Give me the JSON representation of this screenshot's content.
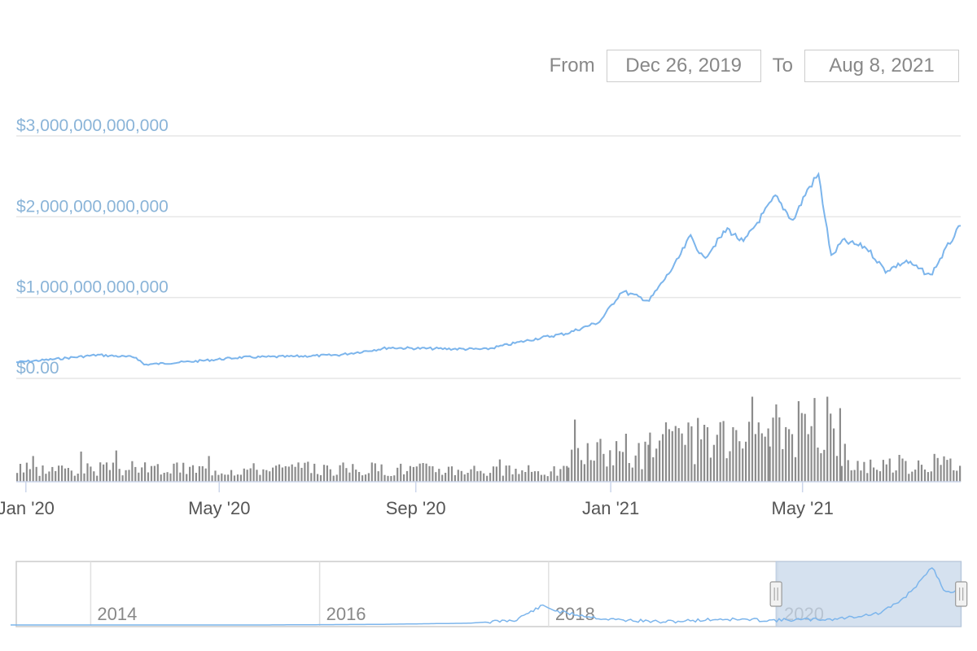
{
  "range_selector": {
    "from_label": "From",
    "from_value": "Dec 26, 2019",
    "to_label": "To",
    "to_value": "Aug 8, 2021"
  },
  "colors": {
    "line": "#7cb5ec",
    "volume": "#8c8c8c",
    "axis_label": "#8ab4d8",
    "grid": "#e6e6e6",
    "navigator_mask": "#c7d7ea"
  },
  "chart_data": [
    {
      "type": "line",
      "title": "",
      "ylabel": "",
      "ylim": [
        0,
        3000000000000
      ],
      "yticks": [
        {
          "value": 0,
          "label": "$0.00"
        },
        {
          "value": 1000000000000,
          "label": "$1,000,000,000,000"
        },
        {
          "value": 2000000000000,
          "label": "$2,000,000,000,000"
        },
        {
          "value": 3000000000000,
          "label": "$3,000,000,000,000"
        }
      ],
      "xlim": [
        "2019-12-26",
        "2021-08-08"
      ],
      "xticks": [
        {
          "date": "2020-01-01",
          "label": "Jan '20"
        },
        {
          "date": "2020-05-01",
          "label": "May '20"
        },
        {
          "date": "2020-09-01",
          "label": "Sep '20"
        },
        {
          "date": "2021-01-01",
          "label": "Jan '21"
        },
        {
          "date": "2021-05-01",
          "label": "May '21"
        }
      ],
      "series": [
        {
          "points": [
            [
              "2019-12-26",
              200000000000
            ],
            [
              "2020-01-15",
              230000000000
            ],
            [
              "2020-02-15",
              290000000000
            ],
            [
              "2020-03-10",
              260000000000
            ],
            [
              "2020-03-15",
              170000000000
            ],
            [
              "2020-04-15",
              210000000000
            ],
            [
              "2020-05-15",
              260000000000
            ],
            [
              "2020-06-15",
              270000000000
            ],
            [
              "2020-07-15",
              290000000000
            ],
            [
              "2020-08-15",
              380000000000
            ],
            [
              "2020-09-05",
              370000000000
            ],
            [
              "2020-10-15",
              360000000000
            ],
            [
              "2020-11-15",
              490000000000
            ],
            [
              "2020-12-05",
              560000000000
            ],
            [
              "2020-12-25",
              700000000000
            ],
            [
              "2021-01-08",
              1080000000000
            ],
            [
              "2021-01-25",
              960000000000
            ],
            [
              "2021-02-10",
              1400000000000
            ],
            [
              "2021-02-20",
              1760000000000
            ],
            [
              "2021-02-28",
              1480000000000
            ],
            [
              "2021-03-15",
              1850000000000
            ],
            [
              "2021-03-25",
              1680000000000
            ],
            [
              "2021-04-14",
              2250000000000
            ],
            [
              "2021-04-25",
              1950000000000
            ],
            [
              "2021-05-04",
              2330000000000
            ],
            [
              "2021-05-11",
              2520000000000
            ],
            [
              "2021-05-19",
              1500000000000
            ],
            [
              "2021-05-26",
              1700000000000
            ],
            [
              "2021-06-10",
              1620000000000
            ],
            [
              "2021-06-22",
              1330000000000
            ],
            [
              "2021-07-05",
              1450000000000
            ],
            [
              "2021-07-20",
              1270000000000
            ],
            [
              "2021-07-31",
              1640000000000
            ],
            [
              "2021-08-08",
              1890000000000
            ]
          ]
        }
      ]
    },
    {
      "type": "bar",
      "title": "",
      "note": "volume bars (unlabeled axis, relative heights 0-1)",
      "ylim": [
        0,
        1
      ],
      "segments": [
        {
          "from": "2019-12-26",
          "to": "2020-10-15",
          "level": 0.18
        },
        {
          "from": "2020-10-15",
          "to": "2020-12-05",
          "level": 0.15
        },
        {
          "from": "2020-12-05",
          "to": "2021-01-25",
          "level": 0.4
        },
        {
          "from": "2021-01-25",
          "to": "2021-04-10",
          "level": 0.55
        },
        {
          "from": "2021-04-10",
          "to": "2021-05-25",
          "level": 0.75
        },
        {
          "from": "2021-05-25",
          "to": "2021-08-08",
          "level": 0.25
        }
      ]
    },
    {
      "type": "area",
      "title": "",
      "note": "navigator overview",
      "xticks": [
        {
          "year": 2014,
          "label": "2014"
        },
        {
          "year": 2016,
          "label": "2016"
        },
        {
          "year": 2018,
          "label": "2018"
        },
        {
          "year": 2020,
          "label": "2020"
        }
      ],
      "selection": [
        "2019-12-26",
        "2021-08-08"
      ],
      "points": [
        [
          2013.3,
          0.0
        ],
        [
          2015.5,
          0.0
        ],
        [
          2016.5,
          0.01
        ],
        [
          2017.3,
          0.03
        ],
        [
          2017.7,
          0.08
        ],
        [
          2017.95,
          0.33
        ],
        [
          2018.1,
          0.22
        ],
        [
          2018.5,
          0.1
        ],
        [
          2019.0,
          0.05
        ],
        [
          2019.5,
          0.1
        ],
        [
          2019.95,
          0.08
        ],
        [
          2020.5,
          0.1
        ],
        [
          2020.9,
          0.2
        ],
        [
          2021.1,
          0.45
        ],
        [
          2021.3,
          0.85
        ],
        [
          2021.35,
          1.0
        ],
        [
          2021.45,
          0.6
        ],
        [
          2021.6,
          0.55
        ]
      ]
    }
  ]
}
